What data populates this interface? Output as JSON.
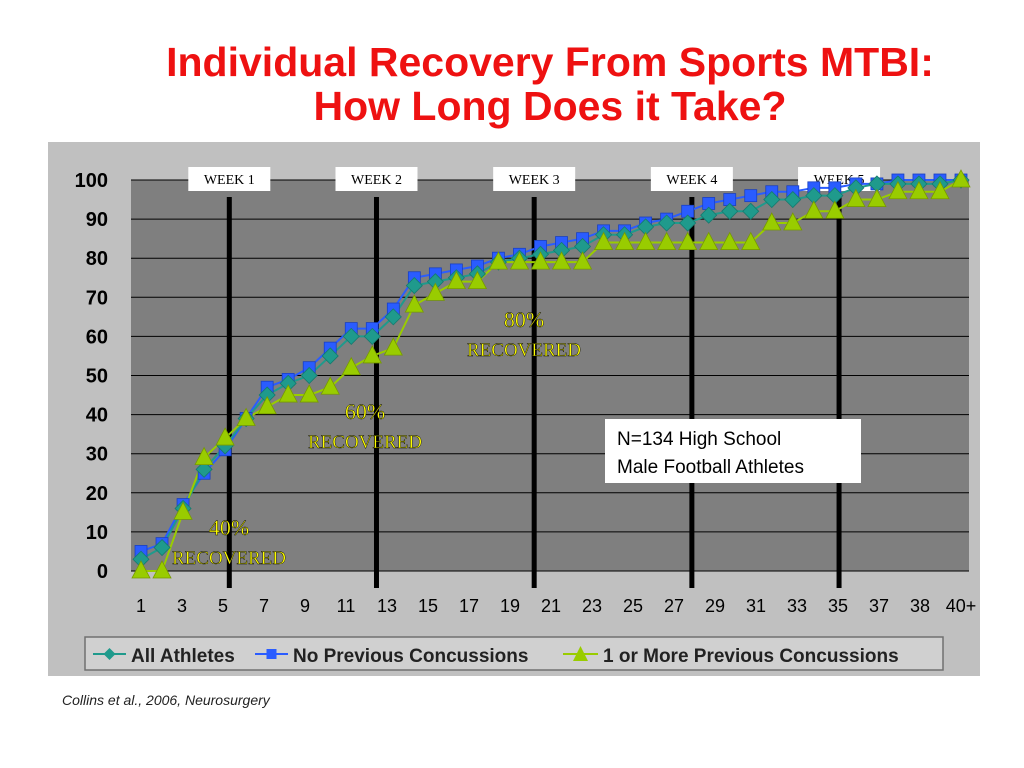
{
  "title_line1": "Individual Recovery From Sports MTBI:",
  "title_line2": "How Long Does it Take?",
  "citation": "Collins et al., 2006, Neurosurgery",
  "colors": {
    "title": "#ee1111",
    "chart_bg": "#c0c0c0",
    "plot_bg": "#7f7f7f",
    "all_athletes": "#1f9a8c",
    "no_previous": "#2a5cff",
    "one_or_more": "#99cc00",
    "annotation_text": "#ffff00"
  },
  "chart_data": {
    "type": "line",
    "categories": [
      "1",
      "2",
      "3",
      "4",
      "5",
      "6",
      "7",
      "8",
      "9",
      "10",
      "11",
      "12",
      "13",
      "14",
      "15",
      "16",
      "17",
      "18",
      "19",
      "20",
      "21",
      "22",
      "23",
      "24",
      "25",
      "26",
      "27",
      "28",
      "29",
      "30",
      "31",
      "32",
      "33",
      "34",
      "35",
      "36",
      "37",
      "38",
      "39",
      "40+"
    ],
    "x_tick_labels": [
      "1",
      "3",
      "5",
      "7",
      "9",
      "11",
      "13",
      "15",
      "17",
      "19",
      "21",
      "23",
      "25",
      "27",
      "29",
      "31",
      "33",
      "35",
      "37",
      "38",
      "40+"
    ],
    "y_tick_labels": [
      "0",
      "10",
      "20",
      "30",
      "40",
      "50",
      "60",
      "70",
      "80",
      "90",
      "100"
    ],
    "ylim": [
      0,
      100
    ],
    "grid": "horizontal",
    "legend_position": "bottom",
    "series": [
      {
        "name": "All Athletes",
        "marker": "diamond",
        "values": [
          3,
          6,
          16,
          26,
          32,
          39,
          45,
          48,
          50,
          55,
          60,
          60,
          65,
          73,
          74,
          75,
          76,
          79,
          80,
          81,
          82,
          83,
          86,
          86,
          88,
          89,
          89,
          91,
          92,
          92,
          95,
          95,
          96,
          96,
          98,
          99,
          99,
          99,
          99,
          100
        ]
      },
      {
        "name": "No Previous Concussions",
        "marker": "square",
        "values": [
          5,
          7,
          17,
          25,
          31,
          39,
          47,
          49,
          52,
          57,
          62,
          62,
          67,
          75,
          76,
          77,
          78,
          80,
          81,
          83,
          84,
          85,
          87,
          87,
          89,
          90,
          92,
          94,
          95,
          96,
          97,
          97,
          98,
          98,
          99,
          99,
          100,
          100,
          100,
          100
        ]
      },
      {
        "name": "1 or More Previous Concussions",
        "marker": "triangle",
        "values": [
          0,
          0,
          15,
          29,
          34,
          39,
          42,
          45,
          45,
          47,
          52,
          55,
          57,
          68,
          71,
          74,
          74,
          79,
          79,
          79,
          79,
          79,
          84,
          84,
          84,
          84,
          84,
          84,
          84,
          84,
          89,
          89,
          92,
          92,
          95,
          95,
          97,
          97,
          97,
          100
        ]
      }
    ],
    "week_markers": [
      {
        "label": "WEEK 1",
        "x": 5.2
      },
      {
        "label": "WEEK 2",
        "x": 12.2
      },
      {
        "label": "WEEK 3",
        "x": 19.7
      },
      {
        "label": "WEEK 4",
        "x": 27.2
      },
      {
        "label": "WEEK 5",
        "x": 34.2
      }
    ],
    "annotations": [
      {
        "percent": "40%",
        "text": "RECOVERED"
      },
      {
        "percent": "60%",
        "text": "RECOVERED"
      },
      {
        "percent": "80%",
        "text": "RECOVERED"
      }
    ],
    "note_line1": "N=134 High School",
    "note_line2": "Male Football Athletes"
  }
}
